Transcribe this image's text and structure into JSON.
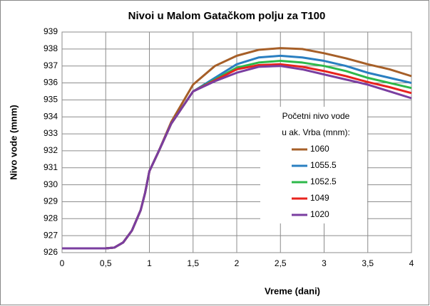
{
  "chart_data": {
    "type": "line",
    "title": "Nivoi u Malom Gatačkom polju za T100",
    "x_label": "Vreme (dani)",
    "y_label": "Nivo vode (mnm)",
    "legend_title": [
      "Početni nivo vode",
      "u ak. Vrba (mnm):"
    ],
    "x": [
      0,
      0.25,
      0.5,
      0.6,
      0.7,
      0.8,
      0.9,
      0.95,
      1.0,
      1.1,
      1.25,
      1.5,
      1.75,
      2.0,
      2.25,
      2.5,
      2.75,
      3.0,
      3.25,
      3.5,
      3.75,
      4.0
    ],
    "series": [
      {
        "name": "1060",
        "color": "#a65f28",
        "values": [
          926.25,
          926.25,
          926.25,
          926.3,
          926.6,
          927.3,
          928.5,
          929.5,
          930.8,
          931.9,
          933.7,
          935.9,
          937.0,
          937.6,
          937.95,
          938.05,
          938.0,
          937.75,
          937.45,
          937.1,
          936.8,
          936.4
        ]
      },
      {
        "name": "1055.5",
        "color": "#2a7fc1",
        "values": [
          926.25,
          926.25,
          926.25,
          926.3,
          926.6,
          927.3,
          928.5,
          929.5,
          930.8,
          931.9,
          933.6,
          935.5,
          936.3,
          937.1,
          937.5,
          937.6,
          937.5,
          937.3,
          937.0,
          936.6,
          936.3,
          936.0
        ]
      },
      {
        "name": "1052.5",
        "color": "#2db84a",
        "values": [
          926.25,
          926.25,
          926.25,
          926.3,
          926.6,
          927.3,
          928.5,
          929.5,
          930.8,
          931.9,
          933.6,
          935.5,
          936.2,
          936.9,
          937.2,
          937.3,
          937.2,
          937.0,
          936.7,
          936.3,
          936.0,
          935.7
        ]
      },
      {
        "name": "1049",
        "color": "#e8231e",
        "values": [
          926.25,
          926.25,
          926.25,
          926.3,
          926.6,
          927.3,
          928.5,
          929.5,
          930.8,
          931.9,
          933.6,
          935.5,
          936.15,
          936.8,
          937.05,
          937.1,
          936.95,
          936.7,
          936.4,
          936.05,
          935.75,
          935.4
        ]
      },
      {
        "name": "1020",
        "color": "#7a3ea0",
        "values": [
          926.25,
          926.25,
          926.25,
          926.3,
          926.6,
          927.3,
          928.5,
          929.5,
          930.8,
          931.9,
          933.6,
          935.5,
          936.1,
          936.6,
          936.95,
          937.0,
          936.8,
          936.5,
          936.2,
          935.9,
          935.5,
          935.1
        ]
      }
    ],
    "xlim": [
      0,
      4
    ],
    "xticks": [
      0,
      {
        "value": 0.5,
        "label": "0,5"
      },
      1,
      {
        "value": 1.5,
        "label": "1,5"
      },
      2,
      {
        "value": 2.5,
        "label": "2,5"
      },
      3,
      {
        "value": 3.5,
        "label": "3,5"
      },
      4
    ],
    "ylim": [
      926,
      939
    ],
    "yticks": [
      926,
      927,
      928,
      929,
      930,
      931,
      932,
      933,
      934,
      935,
      936,
      937,
      938,
      939
    ],
    "grid": true
  }
}
